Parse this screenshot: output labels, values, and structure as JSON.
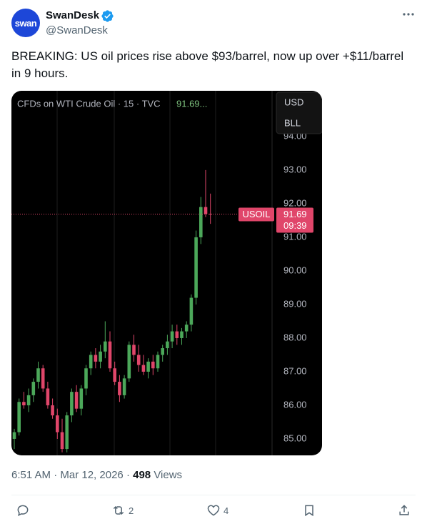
{
  "author": {
    "avatar_text": "swan",
    "name": "SwanDesk",
    "handle": "@SwanDesk"
  },
  "text": "BREAKING: US oil prices rise above $93/barrel, now up over +$11/barrel in 9 hours.",
  "timestamp": "6:51 AM · Mar 12, 2026",
  "separator": "·",
  "views": {
    "count": 498,
    "label": "Views"
  },
  "actions": {
    "retweets": 2,
    "likes": 4
  },
  "chart_data": {
    "type": "candlestick",
    "title": "CFDs on WTI Crude Oil · 15 · TVC",
    "last_label": "91.69...",
    "currency_menu": [
      "USD",
      "BLL"
    ],
    "symbol": "USOIL",
    "last_price": 91.69,
    "last_time": "09:39",
    "up_color": "#4ca85a",
    "down_color": "#e0466a",
    "open": [
      85.0,
      85.2,
      86.1,
      86.0,
      86.3,
      86.7,
      87.1,
      86.5,
      86.0,
      85.7,
      85.2,
      84.7,
      85.7,
      86.4,
      85.9,
      86.5,
      87.1,
      87.5,
      87.3,
      87.6,
      87.9,
      87.1,
      86.7,
      86.3,
      86.8,
      87.8,
      87.5,
      87.2,
      87.0,
      87.3,
      87.1,
      87.5,
      87.7,
      87.9,
      88.2,
      88.0,
      88.2,
      88.4,
      89.2,
      91.0,
      91.9,
      91.7
    ],
    "high": [
      85.3,
      86.2,
      86.4,
      86.5,
      86.8,
      87.3,
      87.2,
      86.7,
      86.2,
      85.9,
      85.6,
      85.8,
      86.5,
      86.6,
      86.6,
      87.2,
      87.6,
      87.7,
      87.8,
      88.5,
      88.2,
      87.3,
      86.9,
      86.9,
      87.9,
      88.1,
      87.8,
      87.5,
      87.4,
      87.5,
      87.6,
      87.8,
      88.1,
      88.4,
      88.4,
      88.3,
      88.5,
      89.3,
      91.2,
      92.2,
      93.0,
      92.3
    ],
    "low": [
      84.7,
      85.1,
      85.9,
      85.8,
      86.1,
      86.5,
      86.4,
      85.9,
      85.6,
      85.0,
      84.6,
      84.6,
      85.5,
      85.8,
      85.7,
      86.3,
      86.9,
      87.1,
      87.1,
      87.4,
      87.0,
      86.6,
      86.1,
      86.2,
      86.7,
      87.3,
      87.0,
      86.9,
      86.8,
      86.9,
      87.0,
      87.3,
      87.5,
      87.7,
      87.8,
      87.8,
      88.0,
      88.2,
      89.0,
      90.8,
      91.6,
      91.4
    ],
    "close": [
      85.2,
      86.1,
      86.0,
      86.3,
      86.7,
      87.1,
      86.5,
      86.0,
      85.7,
      85.2,
      84.7,
      85.7,
      86.4,
      85.9,
      86.5,
      87.1,
      87.5,
      87.3,
      87.6,
      87.9,
      87.1,
      86.7,
      86.3,
      86.8,
      87.8,
      87.5,
      87.2,
      87.0,
      87.3,
      87.1,
      87.5,
      87.7,
      87.9,
      88.2,
      88.0,
      88.2,
      88.4,
      89.2,
      91.0,
      91.9,
      91.7,
      91.69
    ],
    "ylim": [
      84.51,
      95.36
    ],
    "yticks": [
      {
        "value": 85,
        "label": "85.00"
      },
      {
        "value": 86,
        "label": "86.00"
      },
      {
        "value": 87,
        "label": "87.00"
      },
      {
        "value": 88,
        "label": "88.00"
      },
      {
        "value": 89,
        "label": "89.00"
      },
      {
        "value": 90,
        "label": "90.00"
      },
      {
        "value": 91,
        "label": "91.00"
      },
      {
        "value": 92,
        "label": "92.00"
      },
      {
        "value": 93,
        "label": "93.00"
      },
      {
        "value": 94,
        "label": "94.00"
      }
    ]
  }
}
